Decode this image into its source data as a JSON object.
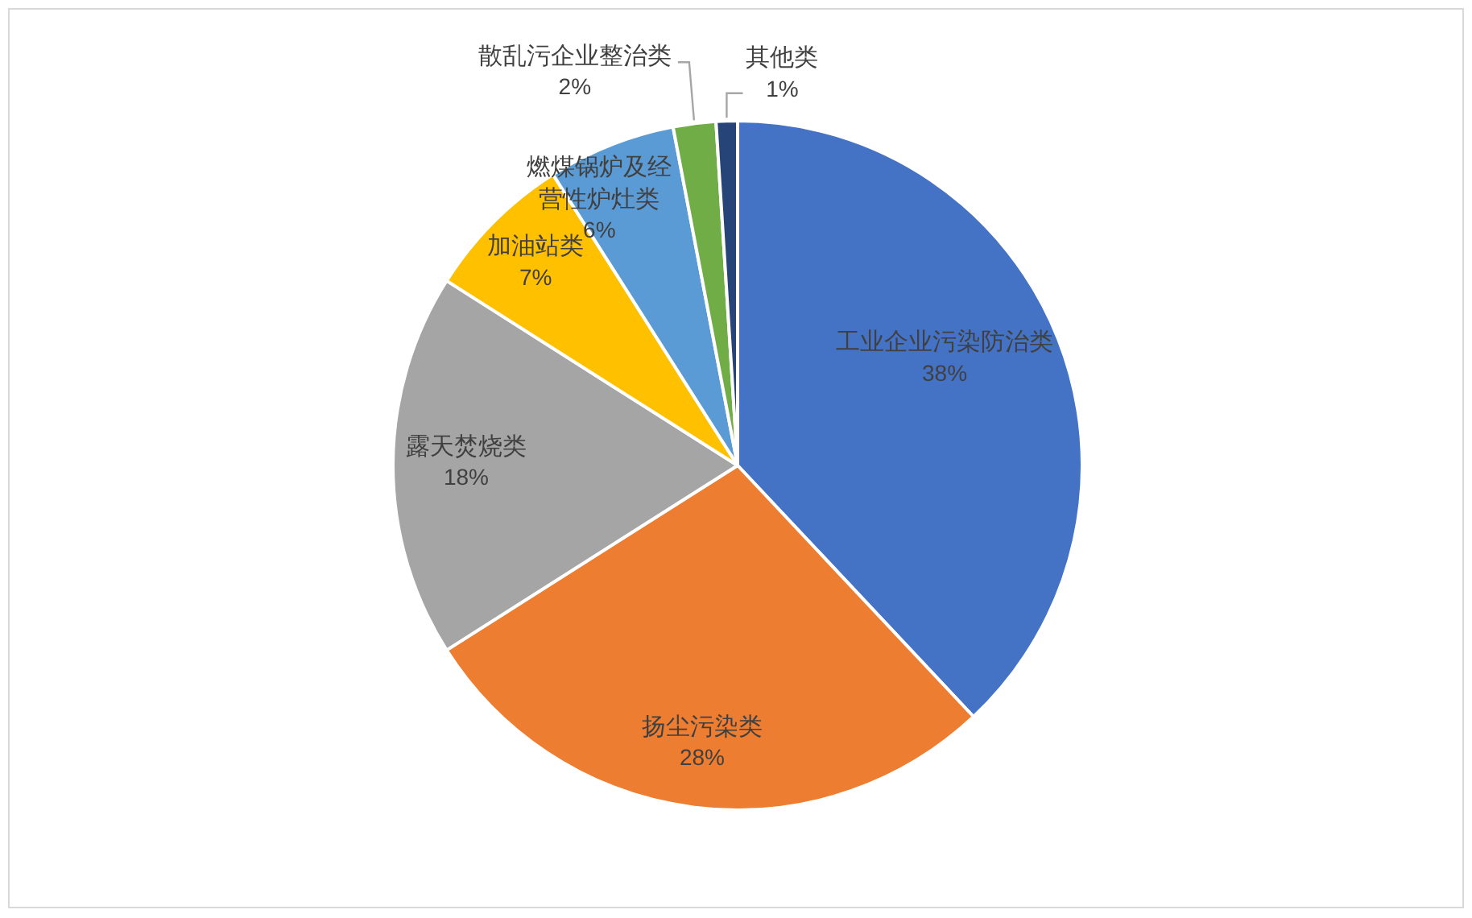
{
  "chart_data": {
    "type": "pie",
    "categories": [
      "工业企业污染防治类",
      "扬尘污染类",
      "露天焚烧类",
      "加油站类",
      "燃煤锅炉及经营性炉灶类",
      "散乱污企业整治类",
      "其他类"
    ],
    "values": [
      38,
      28,
      18,
      7,
      6,
      2,
      1
    ],
    "colors": [
      "#4472c4",
      "#ed7d31",
      "#a5a5a5",
      "#ffc000",
      "#5b9bd5",
      "#70ad47",
      "#264478"
    ],
    "value_labels": [
      "38%",
      "28%",
      "18%",
      "7%",
      "6%",
      "2%",
      "1%"
    ]
  }
}
